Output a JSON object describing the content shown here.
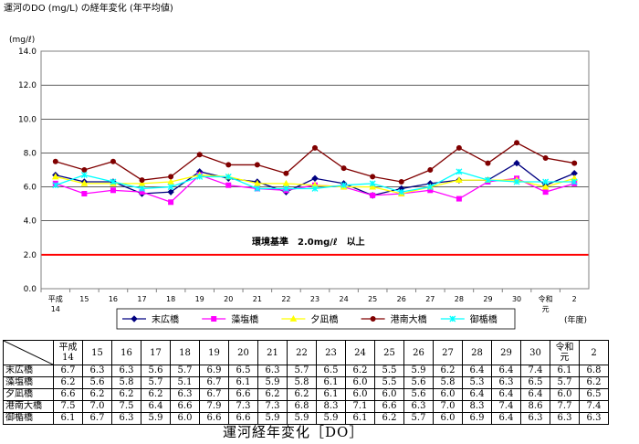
{
  "chart_data": {
    "type": "line",
    "title": "運河のDO (mg/L) の経年変化 (年平均値)",
    "ylabel": "(mg/ℓ)",
    "xlabel": "(年度)",
    "ylim": [
      0,
      14
    ],
    "yticks": [
      "0.0",
      "2.0",
      "4.0",
      "6.0",
      "8.0",
      "10.0",
      "12.0",
      "14.0"
    ],
    "categories": [
      "平成14",
      "15",
      "16",
      "17",
      "18",
      "19",
      "20",
      "21",
      "22",
      "23",
      "24",
      "25",
      "26",
      "27",
      "28",
      "29",
      "30",
      "令和元",
      "2"
    ],
    "series": [
      {
        "name": "末広橋",
        "color": "#000080",
        "marker": "diamond",
        "values": [
          6.7,
          6.3,
          6.3,
          5.6,
          5.7,
          6.9,
          6.5,
          6.3,
          5.7,
          6.5,
          6.2,
          5.5,
          5.9,
          6.2,
          6.4,
          6.4,
          7.4,
          6.1,
          6.8
        ]
      },
      {
        "name": "藻塩橋",
        "color": "#ff00ff",
        "marker": "square",
        "values": [
          6.2,
          5.6,
          5.8,
          5.7,
          5.1,
          6.7,
          6.1,
          5.9,
          5.8,
          6.1,
          6.0,
          5.5,
          5.6,
          5.8,
          5.3,
          6.3,
          6.5,
          5.7,
          6.2
        ]
      },
      {
        "name": "夕凪橋",
        "color": "#ffff00",
        "marker": "triangle",
        "values": [
          6.6,
          6.2,
          6.2,
          6.2,
          6.3,
          6.7,
          6.6,
          6.2,
          6.2,
          6.1,
          6.0,
          6.0,
          5.6,
          6.0,
          6.4,
          6.4,
          6.4,
          6.0,
          6.5
        ]
      },
      {
        "name": "港南大橋",
        "color": "#800000",
        "marker": "circle",
        "values": [
          7.5,
          7.0,
          7.5,
          6.4,
          6.6,
          7.9,
          7.3,
          7.3,
          6.8,
          8.3,
          7.1,
          6.6,
          6.3,
          7.0,
          8.3,
          7.4,
          8.6,
          7.7,
          7.4
        ]
      },
      {
        "name": "御楯橋",
        "color": "#00ffff",
        "marker": "x",
        "values": [
          6.1,
          6.7,
          6.3,
          5.9,
          6.0,
          6.6,
          6.6,
          5.9,
          5.9,
          5.9,
          6.1,
          6.2,
          5.7,
          6.0,
          6.9,
          6.4,
          6.3,
          6.3,
          6.3
        ]
      }
    ],
    "reference_line": {
      "value": 2.0,
      "label": "環境基準　2.0mg/ℓ　以上",
      "color": "#ff0000"
    },
    "legend": "bottom",
    "grid": true
  },
  "table": {
    "years": [
      "平成14",
      "15",
      "16",
      "17",
      "18",
      "19",
      "20",
      "21",
      "22",
      "23",
      "24",
      "25",
      "26",
      "27",
      "28",
      "29",
      "30",
      "令和元",
      "2"
    ],
    "rows": [
      {
        "name": "末広橋",
        "values": [
          "6.7",
          "6.3",
          "6.3",
          "5.6",
          "5.7",
          "6.9",
          "6.5",
          "6.3",
          "5.7",
          "6.5",
          "6.2",
          "5.5",
          "5.9",
          "6.2",
          "6.4",
          "6.4",
          "7.4",
          "6.1",
          "6.8"
        ]
      },
      {
        "name": "藻塩橋",
        "values": [
          "6.2",
          "5.6",
          "5.8",
          "5.7",
          "5.1",
          "6.7",
          "6.1",
          "5.9",
          "5.8",
          "6.1",
          "6.0",
          "5.5",
          "5.6",
          "5.8",
          "5.3",
          "6.3",
          "6.5",
          "5.7",
          "6.2"
        ]
      },
      {
        "name": "夕凪橋",
        "values": [
          "6.6",
          "6.2",
          "6.2",
          "6.2",
          "6.3",
          "6.7",
          "6.6",
          "6.2",
          "6.2",
          "6.1",
          "6.0",
          "6.0",
          "5.6",
          "6.0",
          "6.4",
          "6.4",
          "6.4",
          "6.0",
          "6.5"
        ]
      },
      {
        "name": "港南大橋",
        "values": [
          "7.5",
          "7.0",
          "7.5",
          "6.4",
          "6.6",
          "7.9",
          "7.3",
          "7.3",
          "6.8",
          "8.3",
          "7.1",
          "6.6",
          "6.3",
          "7.0",
          "8.3",
          "7.4",
          "8.6",
          "7.7",
          "7.4"
        ]
      },
      {
        "name": "御楯橋",
        "values": [
          "6.1",
          "6.7",
          "6.3",
          "5.9",
          "6.0",
          "6.6",
          "6.6",
          "5.9",
          "5.9",
          "5.9",
          "6.1",
          "6.2",
          "5.7",
          "6.0",
          "6.9",
          "6.4",
          "6.3",
          "6.3",
          "6.3"
        ]
      }
    ]
  },
  "caption": "運河経年変化［DO］"
}
